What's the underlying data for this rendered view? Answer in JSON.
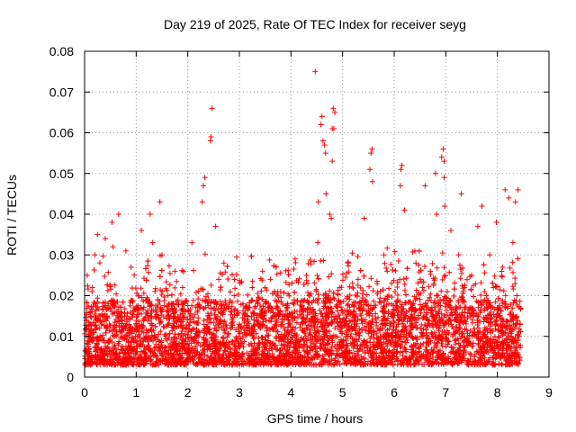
{
  "chart_data": {
    "type": "scatter",
    "title": "Day 219 of 2025, Rate Of TEC Index for receiver seyg",
    "xlabel": "GPS time / hours",
    "ylabel": "ROTI / TECUs",
    "xlim": [
      0,
      9
    ],
    "ylim": [
      0,
      0.08
    ],
    "x_ticks": [
      "0",
      "1",
      "2",
      "3",
      "4",
      "5",
      "6",
      "7",
      "8",
      "9"
    ],
    "y_ticks": [
      "0",
      "0.01",
      "0.02",
      "0.03",
      "0.04",
      "0.05",
      "0.06",
      "0.07",
      "0.08"
    ],
    "grid": true,
    "marker": "+",
    "color": "#ff0000",
    "data_range_x": [
      0,
      8.45
    ],
    "series": [
      {
        "name": "ROTI",
        "points": [
          [
            4.47,
            0.075
          ],
          [
            2.47,
            0.066
          ],
          [
            4.82,
            0.066
          ],
          [
            4.85,
            0.065
          ],
          [
            4.6,
            0.064
          ],
          [
            4.58,
            0.062
          ],
          [
            4.8,
            0.061
          ],
          [
            4.83,
            0.061
          ],
          [
            2.45,
            0.059
          ],
          [
            4.62,
            0.058
          ],
          [
            2.44,
            0.058
          ],
          [
            4.65,
            0.057
          ],
          [
            6.95,
            0.056
          ],
          [
            5.57,
            0.056
          ],
          [
            5.55,
            0.055
          ],
          [
            4.67,
            0.055
          ],
          [
            6.92,
            0.054
          ],
          [
            6.97,
            0.053
          ],
          [
            4.8,
            0.053
          ],
          [
            6.15,
            0.052
          ],
          [
            6.13,
            0.051
          ],
          [
            5.53,
            0.051
          ],
          [
            6.8,
            0.05
          ],
          [
            2.33,
            0.049
          ],
          [
            6.97,
            0.049
          ],
          [
            5.58,
            0.048
          ],
          [
            6.6,
            0.047
          ],
          [
            8.15,
            0.046
          ],
          [
            8.4,
            0.046
          ],
          [
            2.3,
            0.047
          ],
          [
            6.12,
            0.047
          ],
          [
            4.68,
            0.045
          ],
          [
            7.3,
            0.045
          ],
          [
            8.22,
            0.044
          ],
          [
            1.46,
            0.043
          ],
          [
            2.28,
            0.043
          ],
          [
            4.53,
            0.043
          ],
          [
            8.35,
            0.043
          ],
          [
            7.7,
            0.042
          ],
          [
            6.98,
            0.042
          ],
          [
            4.75,
            0.04
          ],
          [
            0.66,
            0.04
          ],
          [
            1.27,
            0.04
          ],
          [
            6.82,
            0.04
          ],
          [
            6.2,
            0.041
          ],
          [
            5.42,
            0.039
          ],
          [
            4.78,
            0.039
          ],
          [
            0.53,
            0.038
          ],
          [
            2.54,
            0.037
          ],
          [
            7.62,
            0.037
          ],
          [
            7.98,
            0.038
          ],
          [
            1.1,
            0.036
          ],
          [
            7.1,
            0.036
          ],
          [
            0.25,
            0.035
          ],
          [
            0.4,
            0.034
          ],
          [
            1.32,
            0.033
          ],
          [
            2.08,
            0.033
          ],
          [
            4.52,
            0.033
          ],
          [
            0.2,
            0.03
          ],
          [
            0.55,
            0.032
          ],
          [
            0.8,
            0.031
          ],
          [
            1.5,
            0.03
          ],
          [
            2.7,
            0.028
          ],
          [
            3.45,
            0.026
          ],
          [
            4.08,
            0.029
          ],
          [
            5.1,
            0.028
          ],
          [
            5.8,
            0.03
          ],
          [
            6.4,
            0.031
          ],
          [
            7.25,
            0.03
          ],
          [
            7.85,
            0.03
          ],
          [
            8.3,
            0.033
          ],
          [
            0.05,
            0.025
          ],
          [
            0.9,
            0.027
          ],
          [
            1.75,
            0.026
          ],
          [
            2.6,
            0.024
          ],
          [
            3.25,
            0.022
          ],
          [
            3.6,
            0.024
          ],
          [
            4.3,
            0.025
          ],
          [
            5.3,
            0.024
          ],
          [
            6.7,
            0.026
          ],
          [
            7.5,
            0.025
          ],
          [
            8.1,
            0.027
          ],
          [
            0.15,
            0.022
          ],
          [
            1.05,
            0.02
          ],
          [
            1.9,
            0.022
          ],
          [
            2.9,
            0.02
          ],
          [
            3.8,
            0.021
          ],
          [
            4.95,
            0.022
          ],
          [
            5.95,
            0.023
          ],
          [
            6.55,
            0.022
          ],
          [
            7.75,
            0.021
          ],
          [
            8.38,
            0.02
          ]
        ]
      }
    ]
  }
}
